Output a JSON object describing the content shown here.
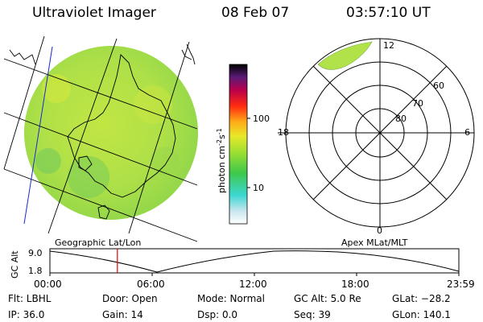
{
  "header": {
    "title": "Ultraviolet Imager",
    "date": "08 Feb 07",
    "time": "03:57:10 UT"
  },
  "colorbar": {
    "ticks": [
      "100",
      "10"
    ],
    "units_label": "photon cm",
    "units_exp1": "-2",
    "units_s": "s",
    "units_exp2": "-1"
  },
  "polar_plot": {
    "mlt_labels": {
      "top": "12",
      "left": "18",
      "right": "6",
      "bottom": "0"
    },
    "lat_labels": [
      "60",
      "70",
      "80"
    ]
  },
  "map_labels": {
    "left": "Geographic Lat/Lon",
    "right": "Apex MLat/MLT"
  },
  "orbit_plot": {
    "ylabel": "GC Alt",
    "yticks": [
      "9.0",
      "1.8"
    ],
    "xticks": [
      "00:00",
      "06:00",
      "12:00",
      "18:00",
      "23:59"
    ],
    "current_time_fraction": 0.165
  },
  "status": {
    "filter": "Flt: LBHL",
    "ip": "IP: 36.0",
    "door": "Door: Open",
    "gain": "Gain: 14",
    "mode": "Mode: Normal",
    "dsp": "Dsp:    0.0",
    "gc_alt": "GC Alt: 5.0 Re",
    "seq": "Seq: 39",
    "glat": "GLat: −28.2",
    "glon": "GLon: 140.1"
  }
}
